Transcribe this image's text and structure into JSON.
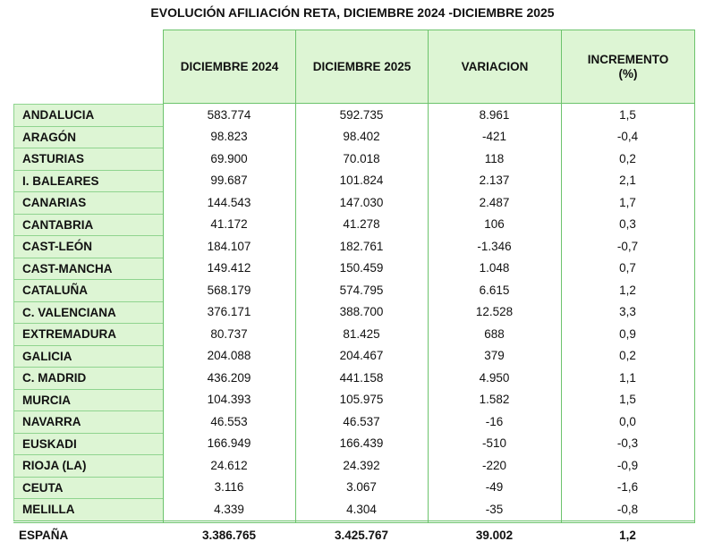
{
  "title": "EVOLUCIÓN AFILIACIÓN RETA, DICIEMBRE 2024 -DICIEMBRE 2025",
  "table": {
    "columns": [
      "DICIEMBRE 2024",
      "DICIEMBRE 2025",
      "VARIACION",
      "INCREMENTO\n(%)"
    ],
    "rows": [
      [
        "ANDALUCIA",
        "583.774",
        "592.735",
        "8.961",
        "1,5"
      ],
      [
        "ARAGÓN",
        "98.823",
        "98.402",
        "-421",
        "-0,4"
      ],
      [
        "ASTURIAS",
        "69.900",
        "70.018",
        "118",
        "0,2"
      ],
      [
        "I. BALEARES",
        "99.687",
        "101.824",
        "2.137",
        "2,1"
      ],
      [
        "CANARIAS",
        "144.543",
        "147.030",
        "2.487",
        "1,7"
      ],
      [
        "CANTABRIA",
        "41.172",
        "41.278",
        "106",
        "0,3"
      ],
      [
        "CAST-LEÓN",
        "184.107",
        "182.761",
        "-1.346",
        "-0,7"
      ],
      [
        "CAST-MANCHA",
        "149.412",
        "150.459",
        "1.048",
        "0,7"
      ],
      [
        "CATALUÑA",
        "568.179",
        "574.795",
        "6.615",
        "1,2"
      ],
      [
        "C. VALENCIANA",
        "376.171",
        "388.700",
        "12.528",
        "3,3"
      ],
      [
        "EXTREMADURA",
        "80.737",
        "81.425",
        "688",
        "0,9"
      ],
      [
        "GALICIA",
        "204.088",
        "204.467",
        "379",
        "0,2"
      ],
      [
        "C. MADRID",
        "436.209",
        "441.158",
        "4.950",
        "1,1"
      ],
      [
        "MURCIA",
        "104.393",
        "105.975",
        "1.582",
        "1,5"
      ],
      [
        "NAVARRA",
        "46.553",
        "46.537",
        "-16",
        "0,0"
      ],
      [
        "EUSKADI",
        "166.949",
        "166.439",
        "-510",
        "-0,3"
      ],
      [
        "RIOJA (LA)",
        "24.612",
        "24.392",
        "-220",
        "-0,9"
      ],
      [
        "CEUTA",
        "3.116",
        "3.067",
        "-49",
        "-1,6"
      ],
      [
        "MELILLA",
        "4.339",
        "4.304",
        "-35",
        "-0,8"
      ]
    ],
    "total": [
      "ESPAÑA",
      "3.386.765",
      "3.425.767",
      "39.002",
      "1,2"
    ]
  }
}
